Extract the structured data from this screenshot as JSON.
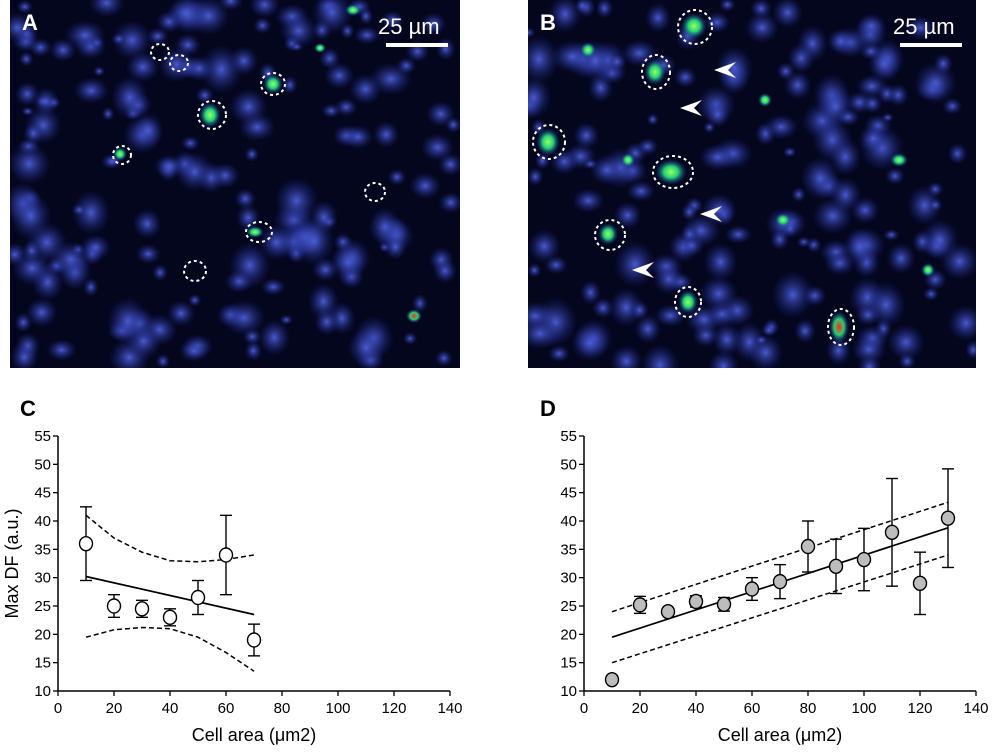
{
  "panels": {
    "A": {
      "letter": "A",
      "scalebar": "25 µm",
      "colors": {
        "background": "#000018",
        "cell": "#2a3aa8",
        "green": "#27e06a",
        "red": "#e0302a"
      }
    },
    "B": {
      "letter": "B",
      "scalebar": "25 µm"
    },
    "C": {
      "letter": "C"
    },
    "D": {
      "letter": "D"
    }
  },
  "chart_data": [
    {
      "type": "scatter",
      "panel": "C",
      "xlabel": "Cell area (μm2)",
      "ylabel": "Max DF (a.u.)",
      "xlim": [
        0,
        140
      ],
      "ylim": [
        10,
        55
      ],
      "xticks": [
        0,
        20,
        40,
        60,
        80,
        100,
        120,
        140
      ],
      "yticks": [
        10,
        15,
        20,
        25,
        30,
        35,
        40,
        45,
        50,
        55
      ],
      "marker": "open-circle",
      "points": [
        {
          "x": 10,
          "y": 36,
          "err": 6.5
        },
        {
          "x": 20,
          "y": 25,
          "err": 2
        },
        {
          "x": 30,
          "y": 24.5,
          "err": 1.5
        },
        {
          "x": 40,
          "y": 23,
          "err": 1.5
        },
        {
          "x": 50,
          "y": 26.5,
          "err": 3
        },
        {
          "x": 60,
          "y": 34,
          "err": 7
        },
        {
          "x": 70,
          "y": 19,
          "err": 2.8
        }
      ],
      "fit": [
        [
          10,
          30.2
        ],
        [
          70,
          23.5
        ]
      ],
      "ci_upper": [
        [
          10,
          41
        ],
        [
          20,
          37
        ],
        [
          30,
          34.5
        ],
        [
          40,
          33
        ],
        [
          50,
          32.8
        ],
        [
          60,
          33.2
        ],
        [
          70,
          34
        ]
      ],
      "ci_lower": [
        [
          10,
          19.5
        ],
        [
          20,
          20.8
        ],
        [
          30,
          21.2
        ],
        [
          40,
          21
        ],
        [
          50,
          19.5
        ],
        [
          60,
          16.8
        ],
        [
          70,
          13.5
        ]
      ]
    },
    {
      "type": "scatter",
      "panel": "D",
      "xlabel": "Cell area (μm2)",
      "ylabel": "",
      "xlim": [
        0,
        140
      ],
      "ylim": [
        10,
        55
      ],
      "xticks": [
        0,
        20,
        40,
        60,
        80,
        100,
        120,
        140
      ],
      "yticks": [
        10,
        15,
        20,
        25,
        30,
        35,
        40,
        45,
        50,
        55
      ],
      "marker": "gray-filled-circle",
      "points": [
        {
          "x": 10,
          "y": 12,
          "err": 0
        },
        {
          "x": 20,
          "y": 25.2,
          "err": 1.5
        },
        {
          "x": 30,
          "y": 24,
          "err": 0
        },
        {
          "x": 40,
          "y": 25.8,
          "err": 1
        },
        {
          "x": 50,
          "y": 25.3,
          "err": 1.2
        },
        {
          "x": 60,
          "y": 28,
          "err": 2
        },
        {
          "x": 70,
          "y": 29.3,
          "err": 3
        },
        {
          "x": 80,
          "y": 35.5,
          "err": 4.5
        },
        {
          "x": 90,
          "y": 32,
          "err": 4.8
        },
        {
          "x": 100,
          "y": 33.2,
          "err": 5.5
        },
        {
          "x": 110,
          "y": 38,
          "err": 9.5
        },
        {
          "x": 120,
          "y": 29,
          "err": 5.5
        },
        {
          "x": 130,
          "y": 40.5,
          "err": 8.7
        }
      ],
      "fit": [
        [
          10,
          19.5
        ],
        [
          130,
          38.8
        ]
      ],
      "ci_upper": [
        [
          10,
          24
        ],
        [
          130,
          43.3
        ]
      ],
      "ci_lower": [
        [
          10,
          15
        ],
        [
          130,
          34
        ]
      ]
    }
  ]
}
